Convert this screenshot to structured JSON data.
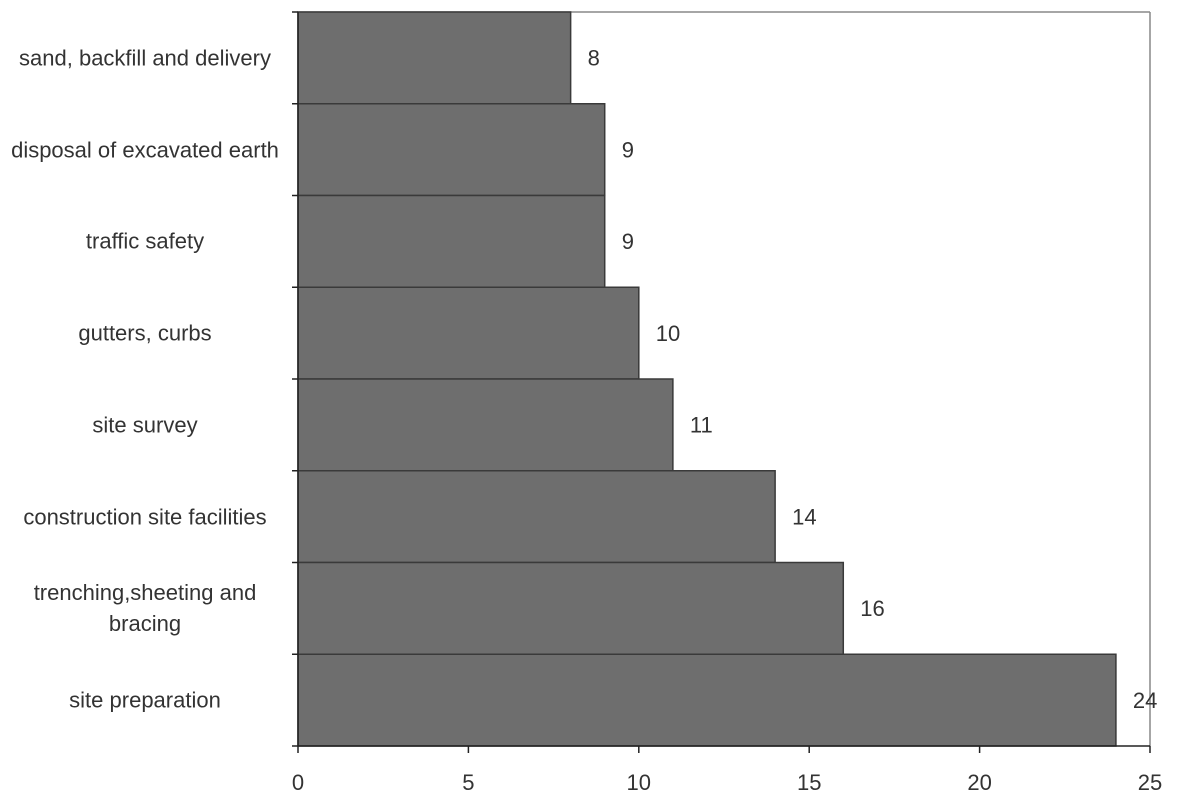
{
  "chart_data": {
    "type": "bar",
    "orientation": "horizontal",
    "categories": [
      "sand, backfill and delivery",
      "disposal of excavated earth",
      "traffic safety",
      "gutters, curbs",
      "site survey",
      "construction site facilities",
      "trenching,sheeting and bracing",
      "site preparation"
    ],
    "values": [
      8,
      9,
      9,
      10,
      11,
      14,
      16,
      24
    ],
    "color": "#6e6e6e",
    "xlim": [
      0,
      25
    ],
    "xticks": [
      0,
      5,
      10,
      15,
      20,
      25
    ],
    "grid": false
  }
}
